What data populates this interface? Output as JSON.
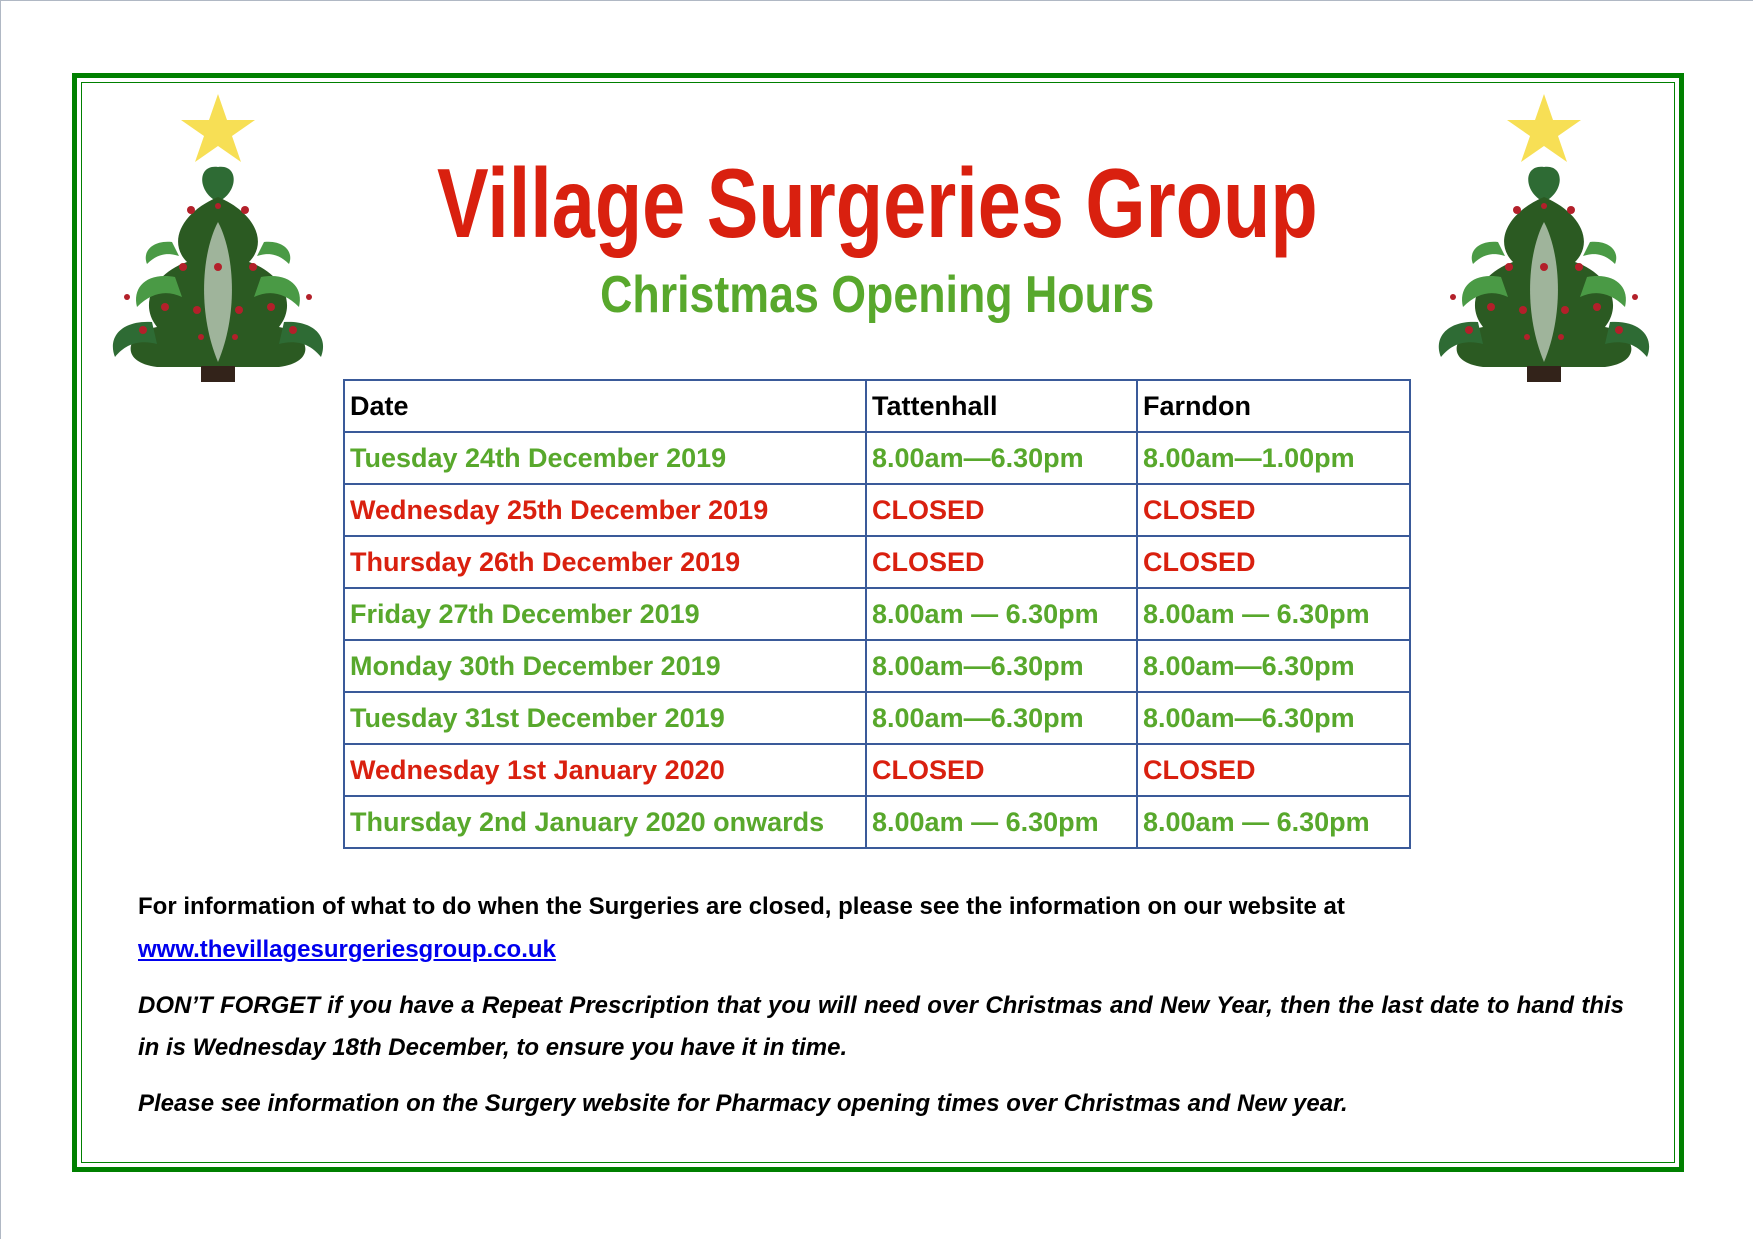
{
  "header": {
    "title": "Village Surgeries Group",
    "subtitle": "Christmas Opening Hours"
  },
  "colors": {
    "title_red": "#d9200f",
    "open_green": "#58a82c",
    "frame_green": "#008000",
    "table_border": "#3a5a99",
    "link_blue": "#0000ee"
  },
  "decorations": [
    "christmas-tree-icon",
    "star-icon"
  ],
  "table": {
    "headers": [
      "Date",
      "Tattenhall",
      "Farndon"
    ],
    "rows": [
      {
        "status": "open",
        "cells": [
          "Tuesday 24th December 2019",
          "8.00am—6.30pm",
          "8.00am—1.00pm"
        ]
      },
      {
        "status": "closed",
        "cells": [
          "Wednesday 25th December 2019",
          "CLOSED",
          "CLOSED"
        ]
      },
      {
        "status": "closed",
        "cells": [
          "Thursday 26th December 2019",
          "CLOSED",
          "CLOSED"
        ]
      },
      {
        "status": "open",
        "cells": [
          "Friday 27th December 2019",
          "8.00am — 6.30pm",
          "8.00am — 6.30pm"
        ]
      },
      {
        "status": "open",
        "cells": [
          "Monday 30th December 2019",
          "8.00am—6.30pm",
          "8.00am—6.30pm"
        ]
      },
      {
        "status": "open",
        "cells": [
          "Tuesday 31st December 2019",
          "8.00am—6.30pm",
          "8.00am—6.30pm"
        ]
      },
      {
        "status": "closed",
        "cells": [
          "Wednesday 1st January 2020",
          "CLOSED",
          "CLOSED"
        ]
      },
      {
        "status": "open",
        "cells": [
          "Thursday 2nd January 2020 onwards",
          "8.00am — 6.30pm",
          "8.00am — 6.30pm"
        ]
      }
    ]
  },
  "info": {
    "closed_info": "For information of what to do when the Surgeries are closed, please see the information on our website at",
    "website": "www.thevillagesurgeriesgroup.co.uk",
    "reminder": "DON’T FORGET if you have a Repeat Prescription that you will need over Christmas and New Year, then the last date to hand this in is Wednesday  18th  December, to ensure you have it in time.",
    "pharmacy": "Please see information on the Surgery website for Pharmacy opening times over Christmas and New year."
  }
}
